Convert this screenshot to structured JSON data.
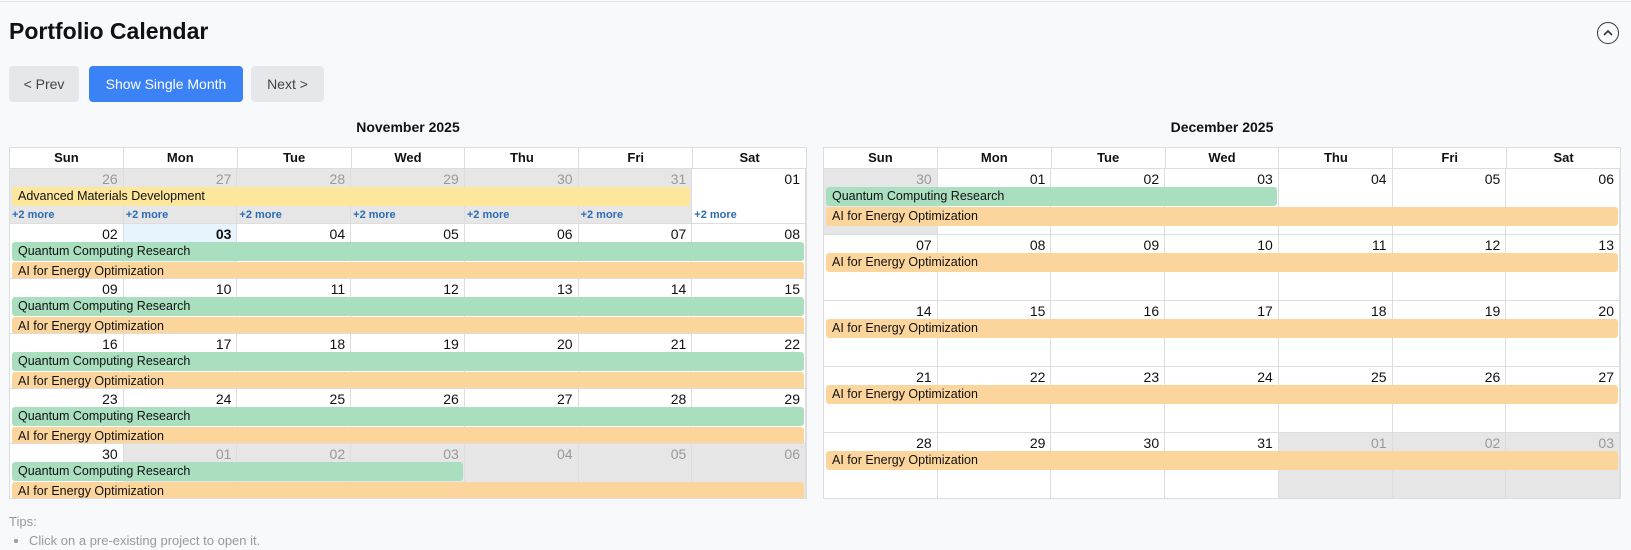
{
  "header": {
    "title": "Portfolio Calendar"
  },
  "buttons": [
    "< Prev",
    "Show Single Month",
    "Next >"
  ],
  "calendars": [
    {
      "title": "November 2025",
      "weekdays": [
        "Sun",
        "Mon",
        "Tue",
        "Wed",
        "Thu",
        "Fri",
        "Sat"
      ],
      "weeks": [
        {
          "days": [
            {
              "n": "26",
              "out": true
            },
            {
              "n": "27",
              "out": true
            },
            {
              "n": "28",
              "out": true
            },
            {
              "n": "29",
              "out": true
            },
            {
              "n": "30",
              "out": true
            },
            {
              "n": "31",
              "out": true
            },
            {
              "n": "01"
            }
          ],
          "events": [
            {
              "label": "Advanced Materials Development",
              "start": 0,
              "end": 5,
              "color": "#fce79c"
            }
          ],
          "more": [
            "+2 more",
            "+2 more",
            "+2 more",
            "+2 more",
            "+2 more",
            "+2 more",
            "+2 more"
          ]
        },
        {
          "days": [
            {
              "n": "02"
            },
            {
              "n": "03",
              "today": true
            },
            {
              "n": "04"
            },
            {
              "n": "05"
            },
            {
              "n": "06"
            },
            {
              "n": "07"
            },
            {
              "n": "08"
            }
          ],
          "events": [
            {
              "label": "Quantum Computing Research",
              "start": 0,
              "end": 6,
              "color": "#a9dfbf"
            },
            {
              "label": "AI for Energy Optimization",
              "start": 0,
              "end": 6,
              "color": "#fcd59c"
            }
          ]
        },
        {
          "days": [
            {
              "n": "09"
            },
            {
              "n": "10"
            },
            {
              "n": "11"
            },
            {
              "n": "12"
            },
            {
              "n": "13"
            },
            {
              "n": "14"
            },
            {
              "n": "15"
            }
          ],
          "events": [
            {
              "label": "Quantum Computing Research",
              "start": 0,
              "end": 6,
              "color": "#a9dfbf"
            },
            {
              "label": "AI for Energy Optimization",
              "start": 0,
              "end": 6,
              "color": "#fcd59c"
            }
          ]
        },
        {
          "days": [
            {
              "n": "16"
            },
            {
              "n": "17"
            },
            {
              "n": "18"
            },
            {
              "n": "19"
            },
            {
              "n": "20"
            },
            {
              "n": "21"
            },
            {
              "n": "22"
            }
          ],
          "events": [
            {
              "label": "Quantum Computing Research",
              "start": 0,
              "end": 6,
              "color": "#a9dfbf"
            },
            {
              "label": "AI for Energy Optimization",
              "start": 0,
              "end": 6,
              "color": "#fcd59c"
            }
          ]
        },
        {
          "days": [
            {
              "n": "23"
            },
            {
              "n": "24"
            },
            {
              "n": "25"
            },
            {
              "n": "26"
            },
            {
              "n": "27"
            },
            {
              "n": "28"
            },
            {
              "n": "29"
            }
          ],
          "events": [
            {
              "label": "Quantum Computing Research",
              "start": 0,
              "end": 6,
              "color": "#a9dfbf"
            },
            {
              "label": "AI for Energy Optimization",
              "start": 0,
              "end": 6,
              "color": "#fcd59c"
            }
          ]
        },
        {
          "days": [
            {
              "n": "30"
            },
            {
              "n": "01",
              "out": true
            },
            {
              "n": "02",
              "out": true
            },
            {
              "n": "03",
              "out": true
            },
            {
              "n": "04",
              "out": true
            },
            {
              "n": "05",
              "out": true
            },
            {
              "n": "06",
              "out": true
            }
          ],
          "events": [
            {
              "label": "Quantum Computing Research",
              "start": 0,
              "end": 3,
              "color": "#a9dfbf"
            },
            {
              "label": "AI for Energy Optimization",
              "start": 0,
              "end": 6,
              "color": "#fcd59c"
            }
          ]
        }
      ]
    },
    {
      "title": "December 2025",
      "weekdays": [
        "Sun",
        "Mon",
        "Tue",
        "Wed",
        "Thu",
        "Fri",
        "Sat"
      ],
      "weeks": [
        {
          "days": [
            {
              "n": "30",
              "out": true
            },
            {
              "n": "01"
            },
            {
              "n": "02"
            },
            {
              "n": "03"
            },
            {
              "n": "04"
            },
            {
              "n": "05"
            },
            {
              "n": "06"
            }
          ],
          "events": [
            {
              "label": "Quantum Computing Research",
              "start": 0,
              "end": 3,
              "color": "#a9dfbf"
            },
            {
              "label": "AI for Energy Optimization",
              "start": 0,
              "end": 6,
              "color": "#fcd59c"
            }
          ]
        },
        {
          "days": [
            {
              "n": "07"
            },
            {
              "n": "08"
            },
            {
              "n": "09"
            },
            {
              "n": "10"
            },
            {
              "n": "11"
            },
            {
              "n": "12"
            },
            {
              "n": "13"
            }
          ],
          "events": [
            {
              "label": "AI for Energy Optimization",
              "start": 0,
              "end": 6,
              "color": "#fcd59c"
            }
          ]
        },
        {
          "days": [
            {
              "n": "14"
            },
            {
              "n": "15"
            },
            {
              "n": "16"
            },
            {
              "n": "17"
            },
            {
              "n": "18"
            },
            {
              "n": "19"
            },
            {
              "n": "20"
            }
          ],
          "events": [
            {
              "label": "AI for Energy Optimization",
              "start": 0,
              "end": 6,
              "color": "#fcd59c"
            }
          ]
        },
        {
          "days": [
            {
              "n": "21"
            },
            {
              "n": "22"
            },
            {
              "n": "23"
            },
            {
              "n": "24"
            },
            {
              "n": "25"
            },
            {
              "n": "26"
            },
            {
              "n": "27"
            }
          ],
          "events": [
            {
              "label": "AI for Energy Optimization",
              "start": 0,
              "end": 6,
              "color": "#fcd59c"
            }
          ]
        },
        {
          "days": [
            {
              "n": "28"
            },
            {
              "n": "29"
            },
            {
              "n": "30"
            },
            {
              "n": "31"
            },
            {
              "n": "01",
              "out": true
            },
            {
              "n": "02",
              "out": true
            },
            {
              "n": "03",
              "out": true
            }
          ],
          "events": [
            {
              "label": "AI for Energy Optimization",
              "start": 0,
              "end": 6,
              "color": "#fcd59c"
            }
          ]
        }
      ]
    }
  ],
  "tips": {
    "title": "Tips:",
    "items": [
      "Click on a pre-existing project to open it."
    ]
  }
}
